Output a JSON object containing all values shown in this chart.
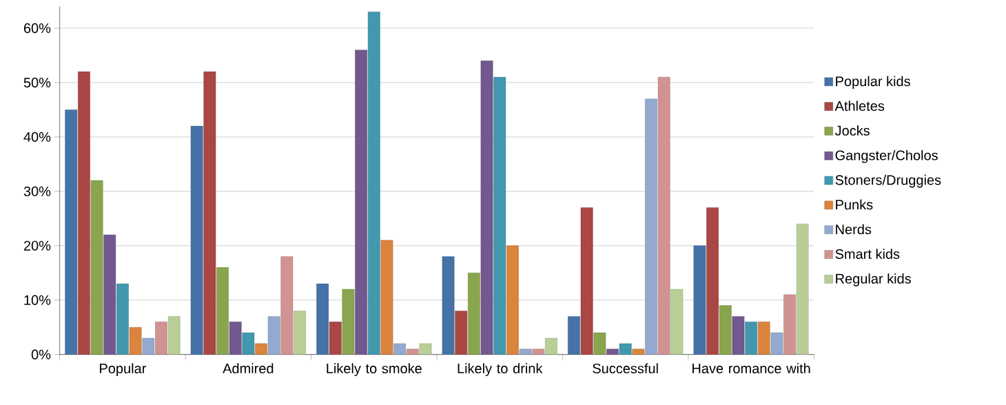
{
  "chart_data": {
    "type": "bar",
    "categories": [
      "Popular",
      "Admired",
      "Likely to smoke",
      "Likely to drink",
      "Successful",
      "Have romance with"
    ],
    "series": [
      {
        "name": "Popular kids",
        "color": "#4572a7",
        "values": [
          45,
          42,
          13,
          18,
          7,
          20
        ]
      },
      {
        "name": "Athletes",
        "color": "#aa4643",
        "values": [
          52,
          52,
          6,
          8,
          27,
          27
        ]
      },
      {
        "name": "Jocks",
        "color": "#89a54e",
        "values": [
          32,
          16,
          12,
          15,
          4,
          9
        ]
      },
      {
        "name": "Gangster/Cholos",
        "color": "#71588f",
        "values": [
          22,
          6,
          56,
          54,
          1,
          7
        ]
      },
      {
        "name": "Stoners/Druggies",
        "color": "#4198af",
        "values": [
          13,
          4,
          63,
          51,
          2,
          6
        ]
      },
      {
        "name": "Punks",
        "color": "#db843d",
        "values": [
          5,
          2,
          21,
          20,
          1,
          6
        ]
      },
      {
        "name": "Nerds",
        "color": "#93a9cf",
        "values": [
          3,
          7,
          2,
          1,
          47,
          4
        ]
      },
      {
        "name": "Smart kids",
        "color": "#d19392",
        "values": [
          6,
          18,
          1,
          1,
          51,
          11
        ]
      },
      {
        "name": "Regular kids",
        "color": "#b9cd96",
        "values": [
          7,
          8,
          2,
          3,
          12,
          24
        ]
      }
    ],
    "ylim": [
      0,
      64
    ],
    "yticks": [
      {
        "value": 0,
        "label": "0%"
      },
      {
        "value": 10,
        "label": "10%"
      },
      {
        "value": 20,
        "label": "20%"
      },
      {
        "value": 30,
        "label": "30%"
      },
      {
        "value": 40,
        "label": "40%"
      },
      {
        "value": 50,
        "label": "50%"
      },
      {
        "value": 60,
        "label": "60%"
      }
    ],
    "grid": "y",
    "legend": "right"
  }
}
